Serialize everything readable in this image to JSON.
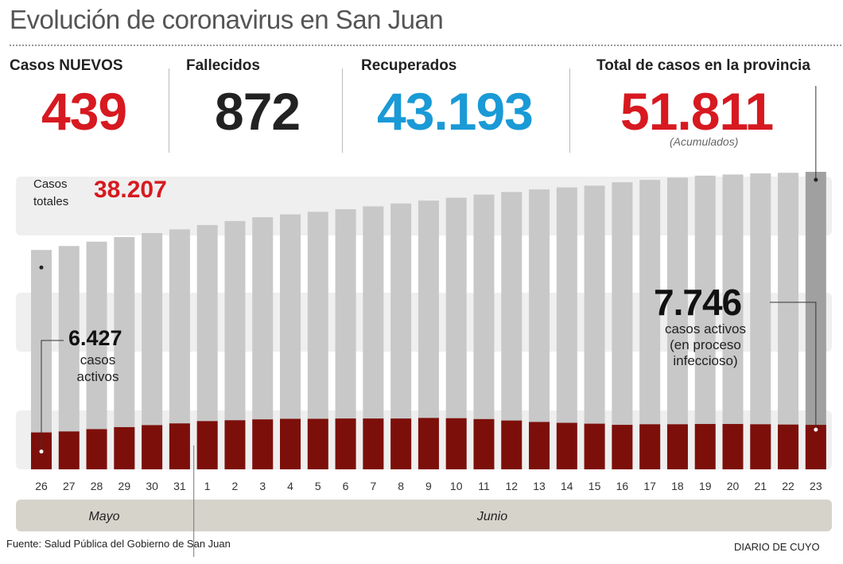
{
  "title": "Evolución de coronavirus en San Juan",
  "stats": {
    "nuevos": {
      "label": "Casos NUEVOS",
      "value": "439",
      "color": "#d71920"
    },
    "fallecidos": {
      "label": "Fallecidos",
      "value": "872",
      "color": "#222222"
    },
    "recuperados": {
      "label": "Recuperados",
      "value": "43.193",
      "color": "#1a9ad6"
    },
    "total": {
      "label": "Total de casos en la provincia",
      "value": "51.811",
      "note": "(Acumulados)",
      "color": "#d71920"
    }
  },
  "annotations": {
    "casos_totales_label_1": "Casos",
    "casos_totales_label_2": "totales",
    "casos_totales_value": "38.207",
    "start_active_value": "6.427",
    "start_active_label_1": "casos",
    "start_active_label_2": "activos",
    "end_active_value": "7.746",
    "end_active_label_1": "casos activos",
    "end_active_label_2": "(en proceso",
    "end_active_label_3": "infeccioso)"
  },
  "months": {
    "may": "Mayo",
    "june": "Junio"
  },
  "source": "Fuente: Salud Pública del Gobierno de San Juan",
  "brand": "DIARIO DE CUYO",
  "colors": {
    "total_bar": "#c8c8c8",
    "last_total_bar": "#a0a0a0",
    "active_bar": "#7d0f0a",
    "band": "#efefef",
    "month_band": "#d6d3cb"
  },
  "chart_data": {
    "type": "bar",
    "categories": [
      "26",
      "27",
      "28",
      "29",
      "30",
      "31",
      "1",
      "2",
      "3",
      "4",
      "5",
      "6",
      "7",
      "8",
      "9",
      "10",
      "11",
      "12",
      "13",
      "14",
      "15",
      "16",
      "17",
      "18",
      "19",
      "20",
      "21",
      "22",
      "23"
    ],
    "ylim": [
      0,
      55000
    ],
    "series": [
      {
        "name": "Casos totales",
        "values": [
          38207,
          38900,
          39650,
          40450,
          41150,
          41800,
          42550,
          43250,
          43900,
          44400,
          44850,
          45300,
          45800,
          46300,
          46800,
          47300,
          47850,
          48300,
          48750,
          49100,
          49400,
          50000,
          50400,
          50800,
          51150,
          51350,
          51550,
          51650,
          51811
        ]
      },
      {
        "name": "casos activos",
        "values": [
          6427,
          6600,
          7000,
          7350,
          7700,
          8000,
          8400,
          8550,
          8700,
          8800,
          8800,
          8850,
          8850,
          8850,
          8950,
          8900,
          8750,
          8500,
          8250,
          8100,
          7950,
          7750,
          7850,
          7850,
          7900,
          7900,
          7850,
          7800,
          7746
        ]
      }
    ]
  }
}
